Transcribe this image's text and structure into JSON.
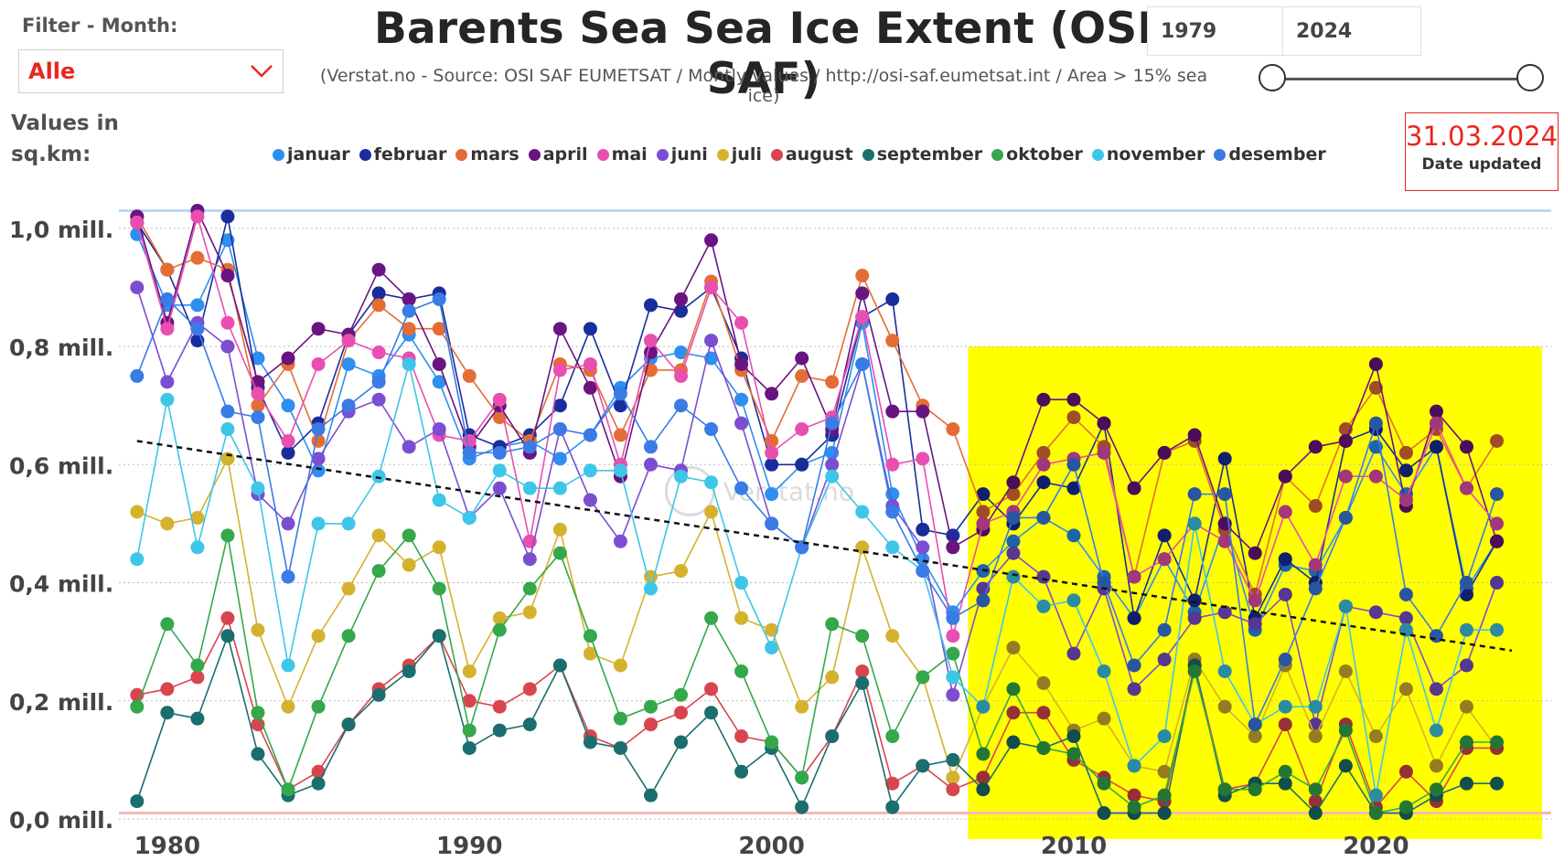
{
  "filter": {
    "label": "Filter - Month:",
    "value": "Alle"
  },
  "title": "Barents Sea Sea Ice Extent (OSI SAF)",
  "subtitle": "(Verstat.no - Source: OSI SAF EUMETSAT / Montly values / http://osi-saf.eumetsat.int / Area > 15% sea ice)",
  "year_range": {
    "from": "1979",
    "to": "2024"
  },
  "values_label": {
    "line1": "Values in",
    "line2": "sq.km:"
  },
  "updated": {
    "date": "31.03.2024",
    "label": "Date updated"
  },
  "colors": {
    "highlight": "#ffff00",
    "trend": "#111111",
    "filter_value": "#e8261d"
  },
  "icons": {
    "dropdown": "chevron-down-icon"
  },
  "chart_data": {
    "type": "scatter",
    "x": [
      1979,
      1980,
      1981,
      1982,
      1983,
      1984,
      1985,
      1986,
      1987,
      1988,
      1989,
      1990,
      1991,
      1992,
      1993,
      1994,
      1995,
      1996,
      1997,
      1998,
      1999,
      2000,
      2001,
      2002,
      2003,
      2004,
      2005,
      2006,
      2007,
      2008,
      2009,
      2010,
      2011,
      2012,
      2013,
      2014,
      2015,
      2016,
      2017,
      2018,
      2019,
      2020,
      2021,
      2022,
      2023,
      2024
    ],
    "xlim": [
      1978.4,
      2025.8
    ],
    "ylim": [
      0,
      1.04
    ],
    "y_ticks": [
      0,
      0.2,
      0.4,
      0.6,
      0.8,
      1.0
    ],
    "y_tick_labels": [
      "0,0 mill.",
      "0,2 mill.",
      "0,4 mill.",
      "0,6 mill.",
      "0,8 mill.",
      "1,0 mill."
    ],
    "x_ticks": [
      1980,
      1990,
      2000,
      2010,
      2020
    ],
    "x_tick_labels": [
      "1980",
      "1990",
      "2000",
      "2010",
      "2020"
    ],
    "grid": true,
    "legend_position": "top",
    "highlight_range": {
      "x": [
        2006.5,
        2025.5
      ],
      "y": [
        0,
        0.8
      ]
    },
    "trend": {
      "x": [
        1979,
        2024.5
      ],
      "y": [
        0.64,
        0.285
      ]
    },
    "watermark": "Verstat.no",
    "series": [
      {
        "name": "januar",
        "color": "#2d8ff0",
        "values": [
          0.99,
          0.87,
          0.87,
          0.98,
          0.78,
          0.7,
          0.59,
          0.77,
          0.75,
          0.82,
          0.74,
          0.61,
          0.63,
          0.64,
          0.61,
          0.65,
          0.73,
          0.78,
          0.79,
          0.78,
          0.71,
          0.55,
          0.6,
          0.62,
          0.84,
          0.55,
          0.44,
          0.35,
          0.42,
          0.47,
          0.51,
          0.48,
          0.41,
          0.34,
          0.44,
          0.35,
          0.5,
          0.32,
          0.43,
          0.42,
          0.51,
          0.63,
          0.55,
          0.63,
          0.39,
          0.47
        ]
      },
      {
        "name": "februar",
        "color": "#1a2d9c",
        "values": [
          1.01,
          0.93,
          0.81,
          1.02,
          0.73,
          0.62,
          0.67,
          0.82,
          0.89,
          0.88,
          0.89,
          0.65,
          0.63,
          0.65,
          0.7,
          0.83,
          0.7,
          0.87,
          0.86,
          0.9,
          0.78,
          0.6,
          0.6,
          0.65,
          0.85,
          0.88,
          0.49,
          0.48,
          0.55,
          0.5,
          0.57,
          0.56,
          0.67,
          0.34,
          0.48,
          0.37,
          0.61,
          0.34,
          0.44,
          0.4,
          0.64,
          0.66,
          0.59,
          0.63,
          0.38,
          0.47
        ]
      },
      {
        "name": "mars",
        "color": "#e46d35",
        "values": [
          1.02,
          0.93,
          0.95,
          0.93,
          0.7,
          0.77,
          0.64,
          0.81,
          0.87,
          0.83,
          0.83,
          0.75,
          0.68,
          0.64,
          0.77,
          0.76,
          0.65,
          0.76,
          0.76,
          0.91,
          0.76,
          0.64,
          0.75,
          0.74,
          0.92,
          0.81,
          0.7,
          0.66,
          0.52,
          0.55,
          0.62,
          0.68,
          0.63,
          0.41,
          0.62,
          0.64,
          0.49,
          0.38,
          0.58,
          0.53,
          0.66,
          0.73,
          0.62,
          0.66,
          0.56,
          0.64
        ]
      },
      {
        "name": "april",
        "color": "#6a1482",
        "values": [
          1.02,
          0.84,
          1.03,
          0.92,
          0.74,
          0.78,
          0.83,
          0.82,
          0.93,
          0.88,
          0.77,
          0.63,
          0.7,
          0.62,
          0.83,
          0.73,
          0.58,
          0.79,
          0.88,
          0.98,
          0.77,
          0.72,
          0.78,
          0.66,
          0.89,
          0.69,
          0.69,
          0.46,
          0.49,
          0.57,
          0.71,
          0.71,
          0.67,
          0.56,
          0.62,
          0.65,
          0.5,
          0.45,
          0.58,
          0.63,
          0.64,
          0.77,
          0.53,
          0.69,
          0.63,
          0.47
        ]
      },
      {
        "name": "mai",
        "color": "#e84fb0",
        "values": [
          1.01,
          0.83,
          1.02,
          0.84,
          0.72,
          0.64,
          0.77,
          0.81,
          0.79,
          0.78,
          0.65,
          0.64,
          0.71,
          0.47,
          0.76,
          0.77,
          0.6,
          0.81,
          0.75,
          0.9,
          0.84,
          0.62,
          0.66,
          0.68,
          0.85,
          0.6,
          0.61,
          0.31,
          0.5,
          0.52,
          0.6,
          0.61,
          0.62,
          0.41,
          0.44,
          0.5,
          0.47,
          0.37,
          0.52,
          0.43,
          0.58,
          0.58,
          0.54,
          0.67,
          0.56,
          0.5
        ]
      },
      {
        "name": "juni",
        "color": "#7b4ed1",
        "values": [
          0.9,
          0.74,
          0.84,
          0.8,
          0.55,
          0.5,
          0.61,
          0.69,
          0.71,
          0.63,
          0.66,
          0.51,
          0.56,
          0.44,
          0.66,
          0.54,
          0.47,
          0.6,
          0.59,
          0.81,
          0.67,
          0.5,
          0.46,
          0.6,
          0.77,
          0.53,
          0.46,
          0.21,
          0.39,
          0.45,
          0.41,
          0.28,
          0.39,
          0.22,
          0.27,
          0.34,
          0.35,
          0.33,
          0.38,
          0.16,
          0.36,
          0.35,
          0.34,
          0.22,
          0.26,
          0.4
        ]
      },
      {
        "name": "juli",
        "color": "#d4b22e",
        "values": [
          0.52,
          0.5,
          0.51,
          0.61,
          0.32,
          0.19,
          0.31,
          0.39,
          0.48,
          0.43,
          0.46,
          0.25,
          0.34,
          0.35,
          0.49,
          0.28,
          0.26,
          0.41,
          0.42,
          0.52,
          0.34,
          0.32,
          0.19,
          0.24,
          0.46,
          0.31,
          0.24,
          0.07,
          0.19,
          0.29,
          0.23,
          0.15,
          0.17,
          0.09,
          0.08,
          0.27,
          0.19,
          0.14,
          0.26,
          0.14,
          0.25,
          0.14,
          0.22,
          0.09,
          0.19,
          0.12
        ]
      },
      {
        "name": "august",
        "color": "#d9454e",
        "values": [
          0.21,
          0.22,
          0.24,
          0.34,
          0.16,
          0.05,
          0.08,
          0.16,
          0.22,
          0.26,
          0.31,
          0.2,
          0.19,
          0.22,
          0.26,
          0.14,
          0.12,
          0.16,
          0.18,
          0.22,
          0.14,
          0.13,
          0.07,
          0.14,
          0.25,
          0.06,
          0.09,
          0.05,
          0.07,
          0.18,
          0.18,
          0.1,
          0.07,
          0.04,
          0.03,
          0.26,
          0.05,
          0.06,
          0.16,
          0.03,
          0.16,
          0.02,
          0.08,
          0.03,
          0.12,
          0.12
        ]
      },
      {
        "name": "september",
        "color": "#1b6e6e",
        "values": [
          0.03,
          0.18,
          0.17,
          0.31,
          0.11,
          0.04,
          0.06,
          0.16,
          0.21,
          0.25,
          0.31,
          0.12,
          0.15,
          0.16,
          0.26,
          0.13,
          0.12,
          0.04,
          0.13,
          0.18,
          0.08,
          0.12,
          0.02,
          0.14,
          0.23,
          0.02,
          0.09,
          0.1,
          0.05,
          0.13,
          0.12,
          0.14,
          0.01,
          0.01,
          0.01,
          0.26,
          0.04,
          0.06,
          0.06,
          0.01,
          0.09,
          0.01,
          0.01,
          0.04,
          0.06,
          0.06
        ]
      },
      {
        "name": "oktober",
        "color": "#34a84a",
        "values": [
          0.19,
          0.33,
          0.26,
          0.48,
          0.18,
          0.05,
          0.19,
          0.31,
          0.42,
          0.48,
          0.39,
          0.15,
          0.32,
          0.39,
          0.45,
          0.31,
          0.17,
          0.19,
          0.21,
          0.34,
          0.25,
          0.13,
          0.07,
          0.33,
          0.31,
          0.14,
          0.24,
          0.28,
          0.11,
          0.22,
          0.12,
          0.11,
          0.06,
          0.02,
          0.04,
          0.25,
          0.05,
          0.05,
          0.08,
          0.05,
          0.15,
          0.01,
          0.02,
          0.05,
          0.13,
          0.13
        ]
      },
      {
        "name": "november",
        "color": "#3ec6e8",
        "values": [
          0.44,
          0.71,
          0.46,
          0.66,
          0.56,
          0.26,
          0.5,
          0.5,
          0.58,
          0.77,
          0.54,
          0.51,
          0.59,
          0.56,
          0.56,
          0.59,
          0.59,
          0.39,
          0.58,
          0.57,
          0.4,
          0.29,
          0.46,
          0.58,
          0.52,
          0.46,
          0.42,
          0.24,
          0.19,
          0.41,
          0.36,
          0.37,
          0.25,
          0.09,
          0.14,
          0.5,
          0.25,
          0.16,
          0.19,
          0.19,
          0.36,
          0.04,
          0.32,
          0.15,
          0.32,
          0.32
        ]
      },
      {
        "name": "desember",
        "color": "#3a7be6",
        "values": [
          0.75,
          0.88,
          0.83,
          0.69,
          0.68,
          0.41,
          0.66,
          0.7,
          0.74,
          0.86,
          0.88,
          0.62,
          0.62,
          0.63,
          0.66,
          0.65,
          0.72,
          0.63,
          0.7,
          0.66,
          0.56,
          0.5,
          0.46,
          0.67,
          0.77,
          0.52,
          0.42,
          0.34,
          0.37,
          0.51,
          0.51,
          0.6,
          0.4,
          0.26,
          0.32,
          0.55,
          0.55,
          0.16,
          0.27,
          0.39,
          0.51,
          0.67,
          0.38,
          0.31,
          0.4,
          0.55
        ]
      }
    ]
  }
}
